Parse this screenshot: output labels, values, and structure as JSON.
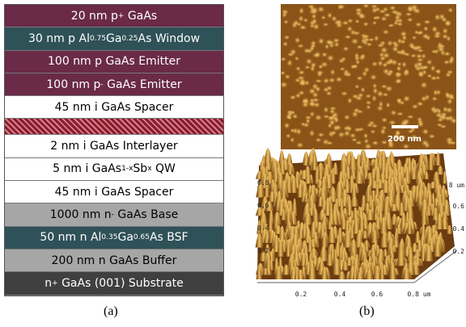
{
  "layers": [
    {
      "color": "#6a2a48",
      "parts": [
        "20 nm p",
        {
          "sup": "+"
        },
        " GaAs"
      ]
    },
    {
      "color": "#2f5158",
      "parts": [
        "30 nm p Al",
        {
          "sub": "0.75"
        },
        "Ga",
        {
          "sub": "0.25"
        },
        "As Window"
      ]
    },
    {
      "color": "#6a2a48",
      "parts": [
        "100 nm p GaAs Emitter"
      ]
    },
    {
      "color": "#6a2a48",
      "parts": [
        "100 nm p",
        {
          "sup": "-"
        },
        " GaAs Emitter"
      ]
    },
    {
      "color": "#ffffff",
      "parts": [
        "45 nm i GaAs Spacer"
      ]
    },
    {
      "color": "#8b1a2a",
      "parts": []
    },
    {
      "color": "#ffffff",
      "parts": [
        "2 nm i GaAs Interlayer"
      ]
    },
    {
      "color": "#ffffff",
      "parts": [
        "5 nm i GaAs",
        {
          "sub": "1-x"
        },
        "Sb",
        {
          "sub": "x"
        },
        " QW"
      ]
    },
    {
      "color": "#ffffff",
      "parts": [
        "45 nm i GaAs Spacer"
      ]
    },
    {
      "color": "#a6a6a6",
      "parts": [
        "1000 nm n",
        {
          "sup": "-"
        },
        " GaAs Base"
      ]
    },
    {
      "color": "#2f5158",
      "parts": [
        "50 nm n Al",
        {
          "sub": "0.35"
        },
        "Ga",
        {
          "sub": "0.65"
        },
        "As BSF"
      ]
    },
    {
      "color": "#a6a6a6",
      "parts": [
        "200 nm n GaAs Buffer"
      ]
    },
    {
      "color": "#3f3f3f",
      "parts": [
        "n",
        {
          "sup": "+"
        },
        " GaAs (001) Substrate"
      ]
    }
  ],
  "caption_a": "(a)",
  "caption_b": "(b)",
  "afm_scale_bar": "200 nm",
  "afm3d_bottom_ticks": [
    "0.2",
    "0.4",
    "0.6",
    "0.8 um"
  ],
  "afm3d_left_ticks": [
    "0.8",
    "0.6",
    "0.4",
    "0.2"
  ],
  "afm3d_right_ticks": [
    ".8 um",
    "0.6",
    "0.4",
    "0.2"
  ]
}
